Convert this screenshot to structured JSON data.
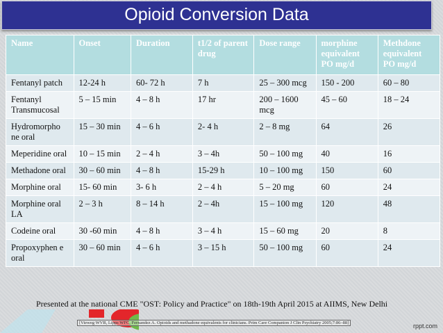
{
  "title": "Opioid Conversion Data",
  "table": {
    "headers": [
      "Name",
      "Onset",
      "Duration",
      "t1/2 of parent drug",
      "Dose range",
      "morphine equivalent PO mg/d",
      "Methdone equivalent PO mg/d"
    ],
    "rows": [
      [
        "Fentanyl patch",
        "12-24 h",
        "60- 72 h",
        "7 h",
        "25 – 300 mcg",
        "150 - 200",
        "60 – 80"
      ],
      [
        "Fentanyl Transmucosal",
        "5 – 15 min",
        "4 – 8 h",
        "17 hr",
        "200 – 1600 mcg",
        "45 – 60",
        "18 – 24"
      ],
      [
        "Hydromorpho ne oral",
        "15 – 30 min",
        "4 – 6 h",
        "2- 4 h",
        "2 – 8 mg",
        "64",
        "26"
      ],
      [
        "Meperidine oral",
        "10 – 15 min",
        "2 – 4 h",
        "3 – 4h",
        "50 – 100 mg",
        "40",
        "16"
      ],
      [
        "Methadone oral",
        "30 – 60 min",
        "4 – 8 h",
        "15-29 h",
        "10 – 100 mg",
        "150",
        "60"
      ],
      [
        "Morphine oral",
        "15- 60 min",
        "3- 6 h",
        "2 – 4 h",
        "5 – 20 mg",
        "60",
        "24"
      ],
      [
        "Morphine oral LA",
        "2 – 3 h",
        "8 – 14 h",
        "2 – 4h",
        "15 – 100 mg",
        "120",
        "48"
      ],
      [
        "Codeine oral",
        "30 -60 min",
        "4 – 8 h",
        "3 – 4 h",
        "15 – 60 mg",
        "20",
        "8"
      ],
      [
        "Propoxyphen e oral",
        "30 – 60 min",
        "4 – 6 h",
        "3 – 15 h",
        "50 – 100 mg",
        "60",
        "24"
      ]
    ]
  },
  "footer": "Presented at the national CME \"OST: Policy and Practice\" on 18th-19th April 2015 at AIIMS, New Delhi",
  "reference": "[Vieweg WVR, Lipps WFC, Fernandez A. Opioids and methadone equivalents for clinicians. Prim Care Companion J Clin Psychiatry 2005;7:86–88]",
  "brand": "rppt.com",
  "colors": {
    "title_bg": "#2e3192",
    "header_bg": "#b3dde0",
    "row_odd": "#dfe9ee",
    "row_even": "#eef3f6"
  }
}
